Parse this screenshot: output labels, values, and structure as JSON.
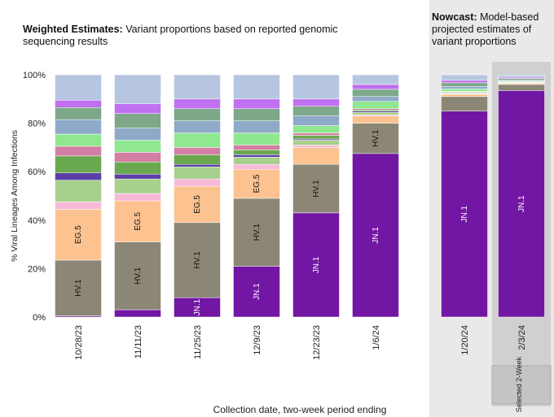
{
  "chart_data": [
    {
      "type": "bar",
      "stacked": true,
      "title": "Weighted Estimates:",
      "subtitle": "Variant proportions based on reported genomic sequencing results",
      "ylabel": "% Viral Lineages Among Infections",
      "xlabel": "Collection date, two-week period ending",
      "categories": [
        "10/28/23",
        "11/11/23",
        "11/25/23",
        "12/9/23",
        "12/23/23",
        "1/6/24"
      ],
      "ylim": [
        0,
        100
      ],
      "yticks": [
        {
          "value": 0,
          "label": "0%"
        },
        {
          "value": 20,
          "label": "20%"
        },
        {
          "value": 40,
          "label": "40%"
        },
        {
          "value": 60,
          "label": "60%"
        },
        {
          "value": 80,
          "label": "80%"
        },
        {
          "value": 100,
          "label": "100%"
        }
      ],
      "series": [
        {
          "name": "JN.1",
          "color": "#7216a4",
          "values": [
            0.5,
            3,
            8,
            21,
            43,
            67.5
          ]
        },
        {
          "name": "HV.1",
          "color": "#8b8676",
          "values": [
            23,
            28,
            31,
            28,
            20,
            12.5
          ]
        },
        {
          "name": "EG.5",
          "color": "#fcc290",
          "values": [
            21,
            17,
            15,
            12,
            7,
            3
          ]
        },
        {
          "color": "#f7b9d7",
          "values": [
            3,
            3,
            3,
            2,
            1,
            0.5
          ]
        },
        {
          "color": "#a8d08d",
          "values": [
            9,
            6,
            5,
            3,
            2,
            1
          ]
        },
        {
          "color": "#5b3ea8",
          "values": [
            3,
            2,
            1,
            1,
            0.5,
            0.5
          ]
        },
        {
          "color": "#6aa84f",
          "values": [
            7,
            5,
            4,
            2,
            1.5,
            0.5
          ]
        },
        {
          "color": "#d47ea3",
          "values": [
            4,
            4,
            3,
            2,
            1,
            0.5
          ]
        },
        {
          "color": "#8fe88f",
          "values": [
            5,
            5,
            6,
            5,
            3,
            3
          ]
        },
        {
          "color": "#8fa9c9",
          "values": [
            6,
            5,
            5,
            5,
            4,
            2
          ]
        },
        {
          "color": "#7ea88a",
          "values": [
            5,
            6,
            5,
            5,
            4,
            3
          ]
        },
        {
          "color": "#c070f0",
          "values": [
            3,
            4,
            4,
            4,
            3,
            2
          ]
        },
        {
          "color": "#b7c6e0",
          "values": [
            10.5,
            12,
            10,
            10,
            10,
            4
          ]
        }
      ]
    },
    {
      "type": "bar",
      "stacked": true,
      "title": "Nowcast:",
      "subtitle": "Model-based projected estimates of variant proportions",
      "annotation": "Selected 2-Week",
      "categories": [
        "1/20/24",
        "2/3/24"
      ],
      "ylim": [
        0,
        100
      ],
      "series": [
        {
          "name": "JN.1",
          "color": "#7216a4",
          "values": [
            85,
            93.5
          ]
        },
        {
          "name": "HV.1",
          "color": "#8b8676",
          "values": [
            6,
            2.5
          ]
        },
        {
          "name": "EG.5",
          "color": "#fcc290",
          "values": [
            1,
            0.5
          ]
        },
        {
          "color": "#f7b9d7",
          "values": [
            0.2,
            0.1
          ]
        },
        {
          "color": "#a8d08d",
          "values": [
            0.3,
            0.1
          ]
        },
        {
          "color": "#5b3ea8",
          "values": [
            0.2,
            0.1
          ]
        },
        {
          "color": "#6aa84f",
          "values": [
            0.3,
            0.2
          ]
        },
        {
          "color": "#d47ea3",
          "values": [
            0.2,
            0.1
          ]
        },
        {
          "color": "#8fe88f",
          "values": [
            1,
            0.4
          ]
        },
        {
          "color": "#8fa9c9",
          "values": [
            1,
            0.4
          ]
        },
        {
          "color": "#7ea88a",
          "values": [
            1.5,
            0.6
          ]
        },
        {
          "color": "#c070f0",
          "values": [
            1,
            0.5
          ]
        },
        {
          "color": "#b7c6e0",
          "values": [
            2.3,
            0.9
          ]
        }
      ]
    }
  ]
}
